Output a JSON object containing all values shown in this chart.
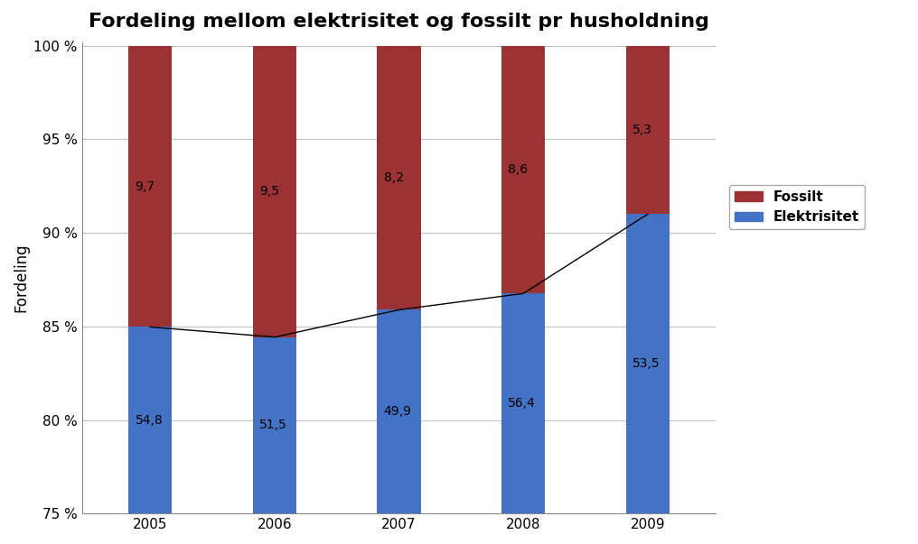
{
  "title": "Fordeling mellom elektrisitet og fossilt pr husholdning",
  "years": [
    "2005",
    "2006",
    "2007",
    "2008",
    "2009"
  ],
  "elektrisitet_values": [
    54.8,
    51.5,
    49.9,
    56.4,
    53.5
  ],
  "fossilt_values": [
    9.7,
    9.5,
    8.2,
    8.6,
    5.3
  ],
  "elektrisitet_pct": [
    84.97,
    84.43,
    85.89,
    86.76,
    91.0
  ],
  "fossilt_pct": [
    15.03,
    15.57,
    14.11,
    13.24,
    9.0
  ],
  "color_elektrisitet": "#4472C4",
  "color_fossilt": "#9B3234",
  "ylabel": "Fordeling",
  "ylim_min": 75,
  "ylim_max": 100,
  "yticks": [
    75,
    80,
    85,
    90,
    95,
    100
  ],
  "line_color": "#000000",
  "background_color": "#FFFFFF",
  "legend_fossilt": "Fossilt",
  "legend_elektrisitet": "Elektrisitet",
  "label_color": "#000000"
}
